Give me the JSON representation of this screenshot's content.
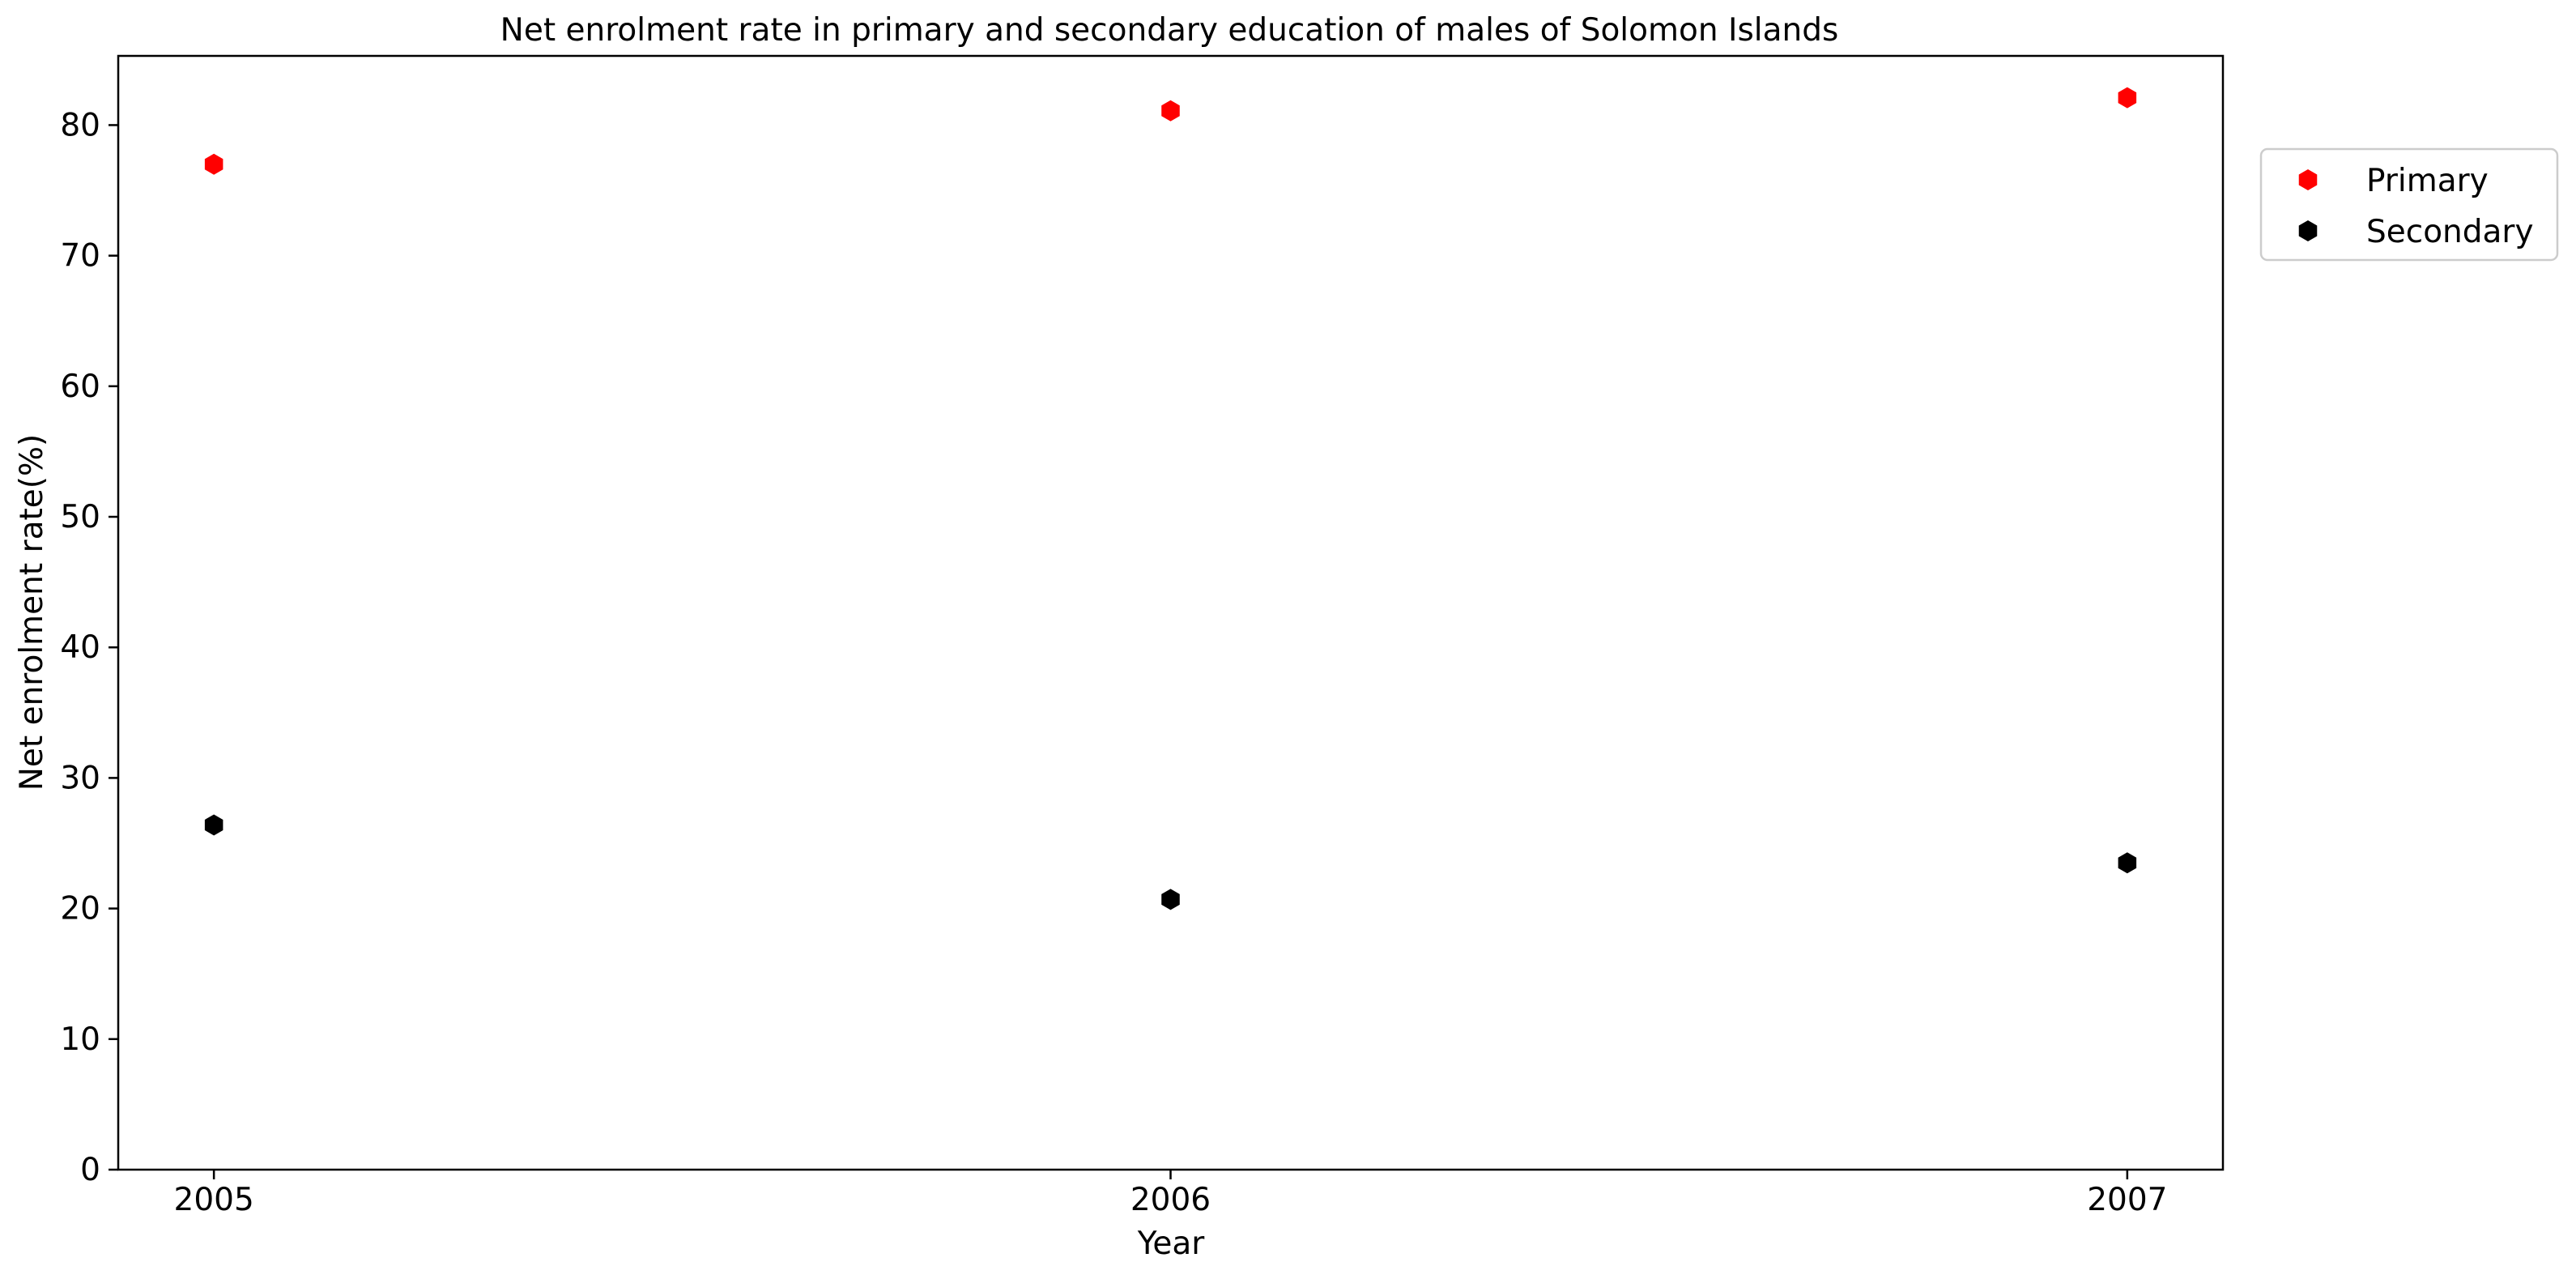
{
  "chart_data": {
    "type": "scatter",
    "title": "Net enrolment rate in primary and secondary education of males of Solomon Islands",
    "xlabel": "Year",
    "ylabel": "Net enrolment rate(%)",
    "x": [
      "2005",
      "2006",
      "2007"
    ],
    "xlim": [
      2004.9,
      2007.1
    ],
    "ylim": [
      0,
      85.3
    ],
    "yticks": [
      0,
      10,
      20,
      30,
      40,
      50,
      60,
      70,
      80
    ],
    "grid": false,
    "legend_position": "outside-top-right",
    "series": [
      {
        "name": "Primary",
        "color": "#ff0000",
        "marker": "hexagon",
        "values": [
          77.0,
          81.1,
          82.1
        ]
      },
      {
        "name": "Secondary",
        "color": "#000000",
        "marker": "hexagon",
        "values": [
          26.4,
          20.7,
          23.5
        ]
      }
    ]
  }
}
